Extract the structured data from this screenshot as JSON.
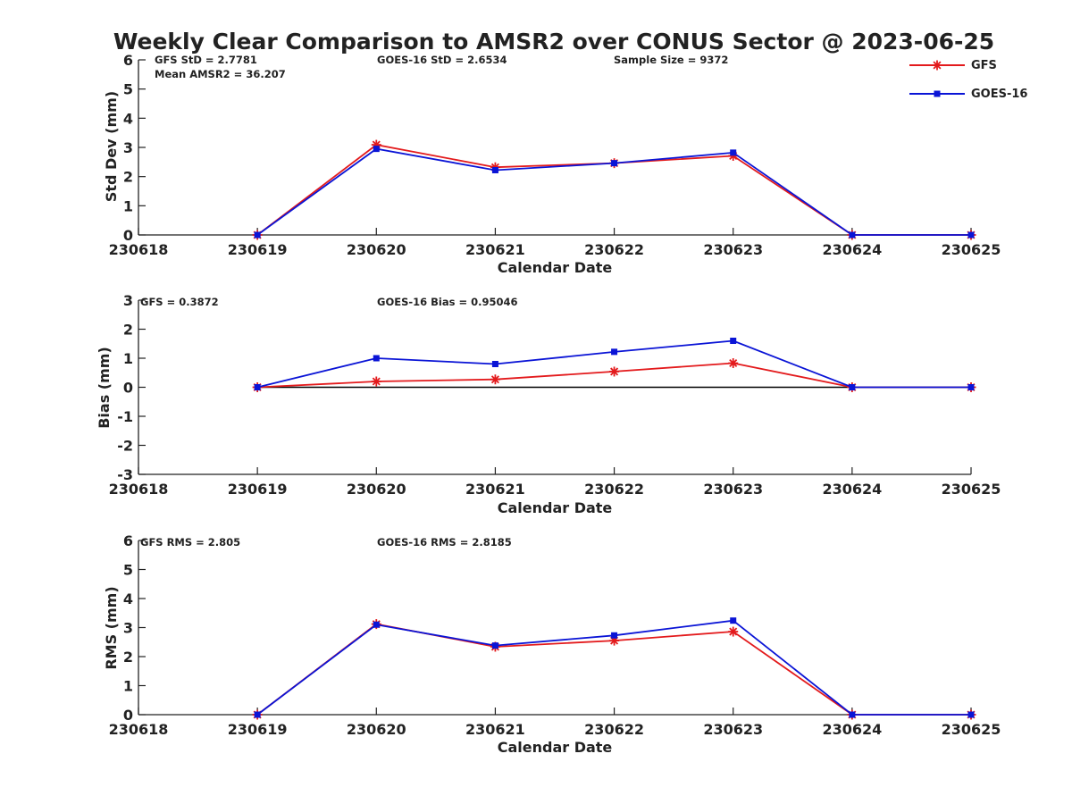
{
  "title": "Weekly Clear Comparison to AMSR2 over CONUS Sector @ 2023-06-25",
  "colors": {
    "gfs": "#e31a1c",
    "goes": "#0a14d6",
    "axis": "#222222",
    "zero_line": "#000000"
  },
  "legend": {
    "placement": "top-right",
    "entries": [
      {
        "label": "GFS",
        "color": "#e31a1c",
        "marker": "asterisk"
      },
      {
        "label": "GOES-16",
        "color": "#0a14d6",
        "marker": "square"
      }
    ]
  },
  "chart_data": [
    {
      "type": "line",
      "name": "std",
      "ylabel": "Std Dev (mm)",
      "xlabel": "Calendar Date",
      "ylim": [
        0,
        6
      ],
      "yticks": [
        0,
        1,
        2,
        3,
        4,
        5,
        6
      ],
      "xlim": [
        230618,
        230625
      ],
      "xticks": [
        "230618",
        "230619",
        "230620",
        "230621",
        "230622",
        "230623",
        "230624",
        "230625"
      ],
      "x": [
        230619,
        230620,
        230621,
        230622,
        230623,
        230624,
        230625
      ],
      "series": [
        {
          "name": "GFS",
          "color": "#e31a1c",
          "marker": "asterisk",
          "values": [
            0,
            3.09,
            2.32,
            2.46,
            2.71,
            0,
            0
          ]
        },
        {
          "name": "GOES-16",
          "color": "#0a14d6",
          "marker": "square",
          "values": [
            0,
            2.95,
            2.22,
            2.46,
            2.82,
            0,
            0
          ]
        }
      ],
      "annotations": [
        "GFS StD = 2.7781",
        "Mean AMSR2 = 36.207",
        "GOES-16 StD = 2.6534",
        "Sample Size = 9372"
      ],
      "zero_line": false
    },
    {
      "type": "line",
      "name": "bias",
      "ylabel": "Bias (mm)",
      "xlabel": "Calendar Date",
      "ylim": [
        -3,
        3
      ],
      "yticks": [
        -3,
        -2,
        -1,
        0,
        1,
        2,
        3
      ],
      "xlim": [
        230618,
        230625
      ],
      "xticks": [
        "230618",
        "230619",
        "230620",
        "230621",
        "230622",
        "230623",
        "230624",
        "230625"
      ],
      "x": [
        230619,
        230620,
        230621,
        230622,
        230623,
        230624,
        230625
      ],
      "series": [
        {
          "name": "GFS",
          "color": "#e31a1c",
          "marker": "asterisk",
          "values": [
            0,
            0.2,
            0.27,
            0.54,
            0.83,
            0,
            0
          ]
        },
        {
          "name": "GOES-16",
          "color": "#0a14d6",
          "marker": "square",
          "values": [
            0,
            1.0,
            0.8,
            1.22,
            1.6,
            0,
            0
          ]
        }
      ],
      "annotations": [
        "GFS = 0.3872",
        "GOES-16 Bias  = 0.95046"
      ],
      "zero_line": true
    },
    {
      "type": "line",
      "name": "rms",
      "ylabel": "RMS (mm)",
      "xlabel": "Calendar Date",
      "ylim": [
        0,
        6
      ],
      "yticks": [
        0,
        1,
        2,
        3,
        4,
        5,
        6
      ],
      "xlim": [
        230618,
        230625
      ],
      "xticks": [
        "230618",
        "230619",
        "230620",
        "230621",
        "230622",
        "230623",
        "230624",
        "230625"
      ],
      "x": [
        230619,
        230620,
        230621,
        230622,
        230623,
        230624,
        230625
      ],
      "series": [
        {
          "name": "GFS",
          "color": "#e31a1c",
          "marker": "asterisk",
          "values": [
            0,
            3.12,
            2.34,
            2.55,
            2.86,
            0,
            0
          ]
        },
        {
          "name": "GOES-16",
          "color": "#0a14d6",
          "marker": "square",
          "values": [
            0,
            3.1,
            2.38,
            2.73,
            3.24,
            0,
            0
          ]
        }
      ],
      "annotations": [
        "GFS RMS = 2.805",
        "GOES-16 RMS = 2.8185"
      ],
      "zero_line": false
    }
  ]
}
